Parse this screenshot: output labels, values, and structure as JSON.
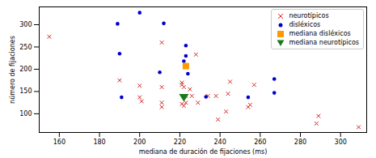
{
  "chart_data": {
    "type": "scatter",
    "x_label": "mediana de duración de fijaciones (ms)",
    "y_label": "número de fijaciones",
    "xlim": [
      150,
      313
    ],
    "ylim": [
      58,
      340
    ],
    "xticks": [
      160,
      180,
      200,
      220,
      240,
      260,
      280,
      300
    ],
    "yticks": [
      100,
      150,
      200,
      250,
      300
    ],
    "grid": false,
    "legend": "upper right",
    "series": [
      {
        "name": "neurotípicos",
        "color": "#d62728",
        "marker": "x",
        "x": [
          155,
          190,
          200,
          200,
          201,
          211,
          211,
          211,
          211,
          221,
          221,
          222,
          221,
          222,
          223,
          223,
          225,
          226,
          228,
          229,
          234,
          238,
          239,
          243,
          244,
          245,
          254,
          255,
          257,
          288,
          289,
          309
        ],
        "values": [
          273,
          175,
          163,
          137,
          128,
          260,
          160,
          125,
          115,
          170,
          165,
          160,
          122,
          118,
          125,
          140,
          155,
          140,
          233,
          125,
          140,
          140,
          87,
          105,
          145,
          172,
          115,
          120,
          165,
          78,
          95,
          70
        ]
      },
      {
        "name": "disléxicos",
        "color": "#0000cc",
        "marker": "circle",
        "x": [
          189,
          190,
          191,
          200,
          210,
          212,
          222,
          223,
          223,
          223,
          224,
          233,
          254,
          267,
          267
        ],
        "values": [
          302,
          235,
          137,
          327,
          193,
          303,
          218,
          253,
          230,
          205,
          190,
          138,
          137,
          178,
          147
        ]
      },
      {
        "name": "mediana disléxicos",
        "color": "#ff9900",
        "marker": "square",
        "x": [
          223
        ],
        "values": [
          207
        ]
      },
      {
        "name": "mediana neurotípicos",
        "color": "#1a7a1a",
        "marker": "triangle-down",
        "x": [
          222
        ],
        "values": [
          137
        ]
      }
    ]
  }
}
